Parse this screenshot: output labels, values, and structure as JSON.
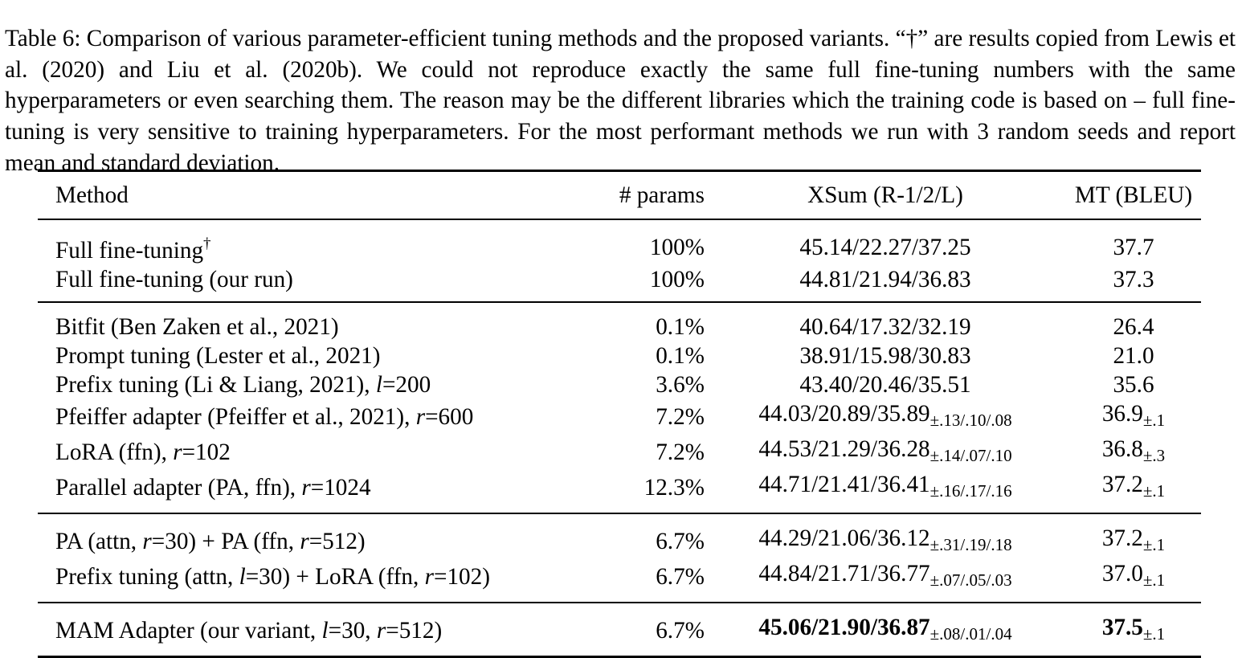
{
  "caption": {
    "label": "Table 6:",
    "text": "Comparison of various parameter-efficient tuning methods and the proposed variants. “†” are results copied from Lewis et al. (2020) and Liu et al. (2020b). We could not reproduce exactly the same full fine-tuning numbers with the same hyperparameters or even searching them. The reason may be the different libraries which the training code is based on – full fine-tuning is very sensitive to training hyperparameters. For the most performant methods we run with 3 random seeds and report mean and standard deviation."
  },
  "table": {
    "headers": {
      "method": "Method",
      "params": "# params",
      "xsum": "XSum (R-1/2/L)",
      "mt": "MT (BLEU)"
    },
    "rows": [
      {
        "method": "Full fine-tuning",
        "mark": "†",
        "params": "100%",
        "xsum": "45.14/22.27/37.25",
        "xsum_std": "",
        "mt": "37.7",
        "mt_std": ""
      },
      {
        "method": "Full fine-tuning (our run)",
        "params": "100%",
        "xsum": "44.81/21.94/36.83",
        "xsum_std": "",
        "mt": "37.3",
        "mt_std": ""
      },
      {
        "method": "Bitfit (Ben Zaken et al., 2021)",
        "params": "0.1%",
        "xsum": "40.64/17.32/32.19",
        "xsum_std": "",
        "mt": "26.4",
        "mt_std": ""
      },
      {
        "method": "Prompt tuning (Lester et al., 2021)",
        "params": "0.1%",
        "xsum": "38.91/15.98/30.83",
        "xsum_std": "",
        "mt": "21.0",
        "mt_std": ""
      },
      {
        "method_a": "Prefix tuning (Li & Liang, 2021), ",
        "var1": "l",
        "val1": "=200",
        "params": "3.6%",
        "xsum": "43.40/20.46/35.51",
        "xsum_std": "",
        "mt": "35.6",
        "mt_std": ""
      },
      {
        "method_a": "Pfeiffer adapter (Pfeiffer et al., 2021), ",
        "var1": "r",
        "val1": "=600",
        "params": "7.2%",
        "xsum": "44.03/20.89/35.89",
        "xsum_std": "±.13/.10/.08",
        "mt": "36.9",
        "mt_std": "±.1"
      },
      {
        "method_a": "LoRA (ffn), ",
        "var1": "r",
        "val1": "=102",
        "params": "7.2%",
        "xsum": "44.53/21.29/36.28",
        "xsum_std": "±.14/.07/.10",
        "mt": "36.8",
        "mt_std": "±.3"
      },
      {
        "method_a": "Parallel adapter (PA, ffn), ",
        "var1": "r",
        "val1": "=1024",
        "params": "12.3%",
        "xsum": "44.71/21.41/36.41",
        "xsum_std": "±.16/.17/.16",
        "mt": "37.2",
        "mt_std": "±.1"
      },
      {
        "method_a": "PA (attn, ",
        "var1": "r",
        "val1": "=30) + PA (ffn, ",
        "var2": "r",
        "val2": "=512)",
        "params": "6.7%",
        "xsum": "44.29/21.06/36.12",
        "xsum_std": "±.31/.19/.18",
        "mt": "37.2",
        "mt_std": "±.1"
      },
      {
        "method_a": "Prefix tuning (attn, ",
        "var1": "l",
        "val1": "=30) + LoRA (ffn, ",
        "var2": "r",
        "val2": "=102)",
        "params": "6.7%",
        "xsum": "44.84/21.71/36.77",
        "xsum_std": "±.07/.05/.03",
        "mt": "37.0",
        "mt_std": "±.1"
      },
      {
        "method_a": "MAM Adapter (our variant, ",
        "var1": "l",
        "val1": "=30, ",
        "var2": "r",
        "val2": "=512)",
        "params": "6.7%",
        "xsum": "45.06/21.90/36.87",
        "xsum_std": "±.08/.01/.04",
        "mt": "37.5",
        "mt_std": "±.1",
        "bold": true
      }
    ]
  }
}
